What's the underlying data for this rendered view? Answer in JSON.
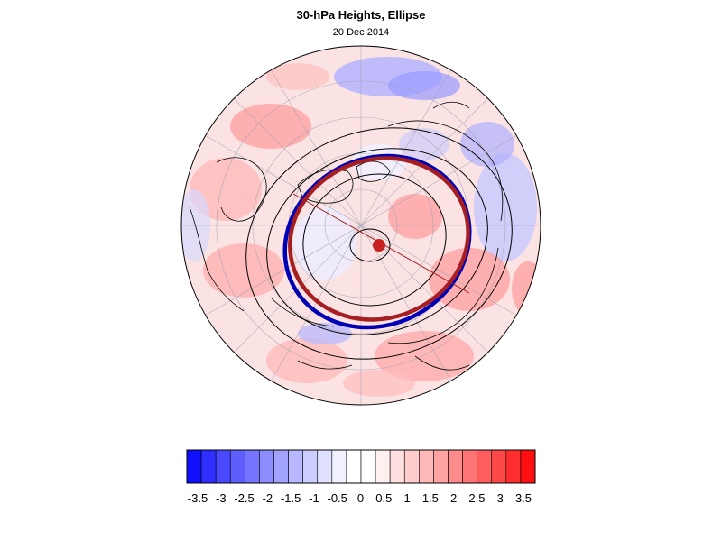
{
  "header": {
    "title": "30-hPa Heights, Ellipse",
    "date": "20 Dec 2014"
  },
  "map": {
    "projection": "north-polar-stereographic",
    "field": "30-hPa height anomaly",
    "ellipses": [
      {
        "color": "#0000b4"
      },
      {
        "color": "#a51e22"
      }
    ],
    "center_marker_color": "#c81e1e"
  },
  "colorbar": {
    "ticks": [
      "-3.5",
      "-3",
      "-2.5",
      "-2",
      "-1.5",
      "-1",
      "-0.5",
      "0",
      "0.5",
      "1",
      "1.5",
      "2",
      "2.5",
      "3",
      "3.5"
    ],
    "colors": [
      "#1010ff",
      "#2e2eff",
      "#4848ff",
      "#5e5eff",
      "#7474ff",
      "#8c8cff",
      "#a2a2ff",
      "#b8b8ff",
      "#ccccff",
      "#e0e0ff",
      "#f0f0ff",
      "#ffffff",
      "#ffffff",
      "#fff0f0",
      "#ffe0e0",
      "#ffcccc",
      "#ffb8b8",
      "#ffa2a2",
      "#ff8c8c",
      "#ff7474",
      "#ff5e5e",
      "#ff4848",
      "#ff2e2e",
      "#ff1010"
    ]
  }
}
